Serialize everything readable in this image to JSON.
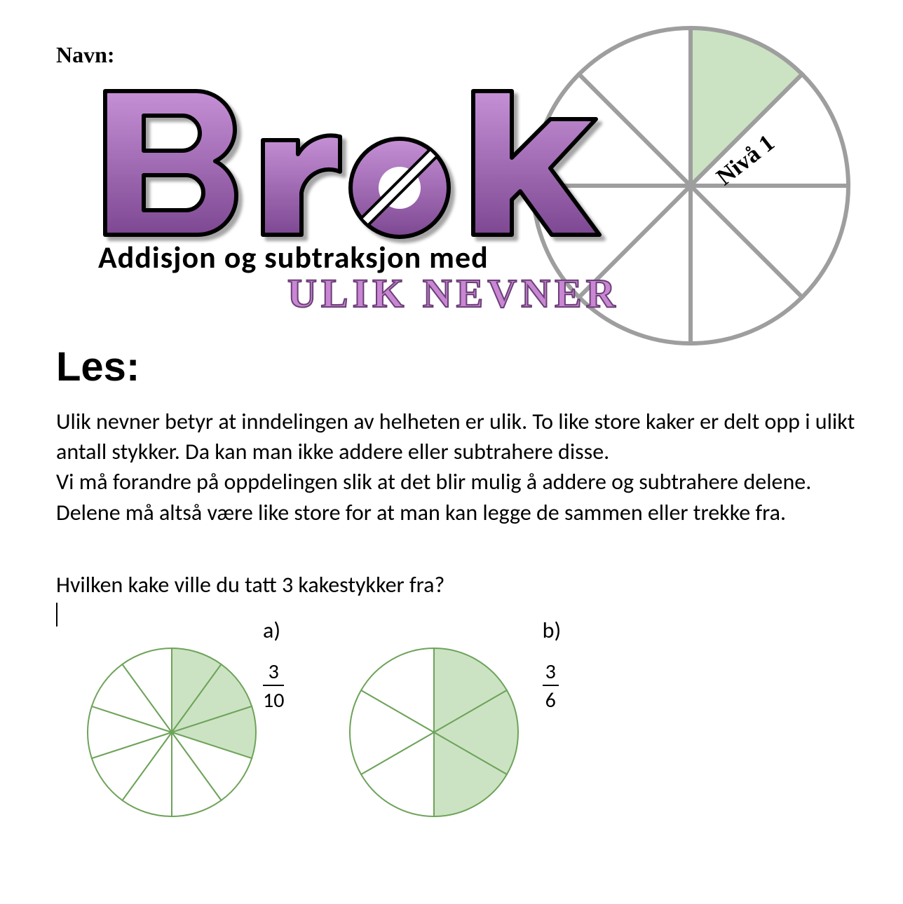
{
  "navn_label": "Navn:",
  "hero": {
    "word_brok": "Brøk",
    "subtitle": "Addisjon og subtraksjon med",
    "ulik_nevner": "ULIK NEVNER",
    "nivaa": "Nivå 1",
    "pie": {
      "slices": 8,
      "radius": 225,
      "stroke": "#9e9e9e",
      "stroke_width": 6,
      "shaded_slices": [
        0
      ],
      "shaded_fill": "#cbe3c3",
      "empty_fill": "#ffffff",
      "start_angle_deg": -90
    },
    "brok_fill_top": "#c690d6",
    "brok_fill_bottom": "#7d4892",
    "brok_stroke": "#000000"
  },
  "les_heading": "Les:",
  "body_text": "Ulik nevner betyr at inndelingen av helheten er ulik. To like store kaker er delt opp i ulikt antall stykker. Da kan man ikke addere eller subtrahere disse.\nVi må forandre på oppdelingen slik at det blir mulig å addere og subtrahere delene. Delene må altså være like store for at man kan legge de sammen eller trekke fra.",
  "question": "Hvilken kake ville du tatt 3 kakestykker fra?",
  "cakes": {
    "a": {
      "label": "a)",
      "numerator": "3",
      "denominator": "10",
      "slices": 10,
      "radius": 120,
      "stroke": "#6ea35a",
      "stroke_width": 2,
      "shaded_slices": [
        0,
        1,
        2
      ],
      "shaded_fill": "#cbe3c3",
      "empty_fill": "#ffffff",
      "start_angle_deg": -90
    },
    "b": {
      "label": "b)",
      "numerator": "3",
      "denominator": "6",
      "slices": 6,
      "radius": 120,
      "stroke": "#6ea35a",
      "stroke_width": 2,
      "shaded_slices": [
        0,
        1,
        2
      ],
      "shaded_fill": "#cbe3c3",
      "empty_fill": "#ffffff",
      "start_angle_deg": -90
    }
  }
}
